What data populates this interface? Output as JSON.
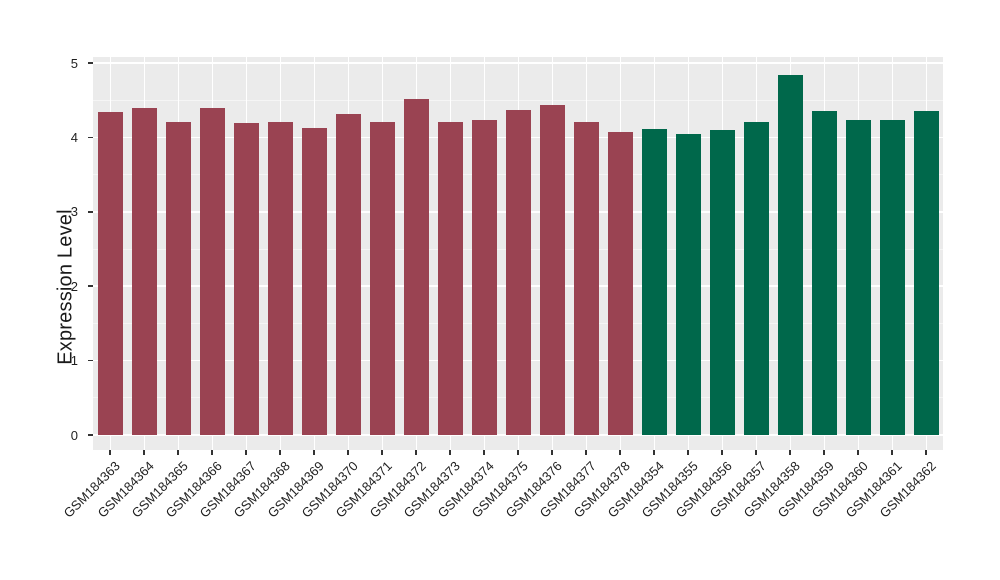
{
  "chart_data": {
    "type": "bar",
    "title": "",
    "xlabel": "",
    "ylabel": "Expression Level",
    "ylim": [
      0,
      5
    ],
    "yticks": [
      0,
      1,
      2,
      3,
      4,
      5
    ],
    "yticks_minor": [
      0.5,
      1.5,
      2.5,
      3.5,
      4.5
    ],
    "grid": "major and minor horizontal white lines, vertical white line at each category center, gray panel background",
    "legend_position": "none",
    "categories": [
      "GSM184363",
      "GSM184364",
      "GSM184365",
      "GSM184366",
      "GSM184367",
      "GSM184368",
      "GSM184369",
      "GSM184370",
      "GSM184371",
      "GSM184372",
      "GSM184373",
      "GSM184374",
      "GSM184375",
      "GSM184376",
      "GSM184377",
      "GSM184378",
      "GSM184354",
      "GSM184355",
      "GSM184356",
      "GSM184357",
      "GSM184358",
      "GSM184359",
      "GSM184360",
      "GSM184361",
      "GSM184362"
    ],
    "values": [
      4.34,
      4.39,
      4.21,
      4.39,
      4.19,
      4.21,
      4.13,
      4.31,
      4.21,
      4.52,
      4.21,
      4.23,
      4.37,
      4.44,
      4.21,
      4.07,
      4.11,
      4.05,
      4.1,
      4.21,
      4.84,
      4.36,
      4.24,
      4.24,
      4.36
    ],
    "bar_groups": [
      "red",
      "red",
      "red",
      "red",
      "red",
      "red",
      "red",
      "red",
      "red",
      "red",
      "red",
      "red",
      "red",
      "red",
      "red",
      "red",
      "green",
      "green",
      "green",
      "green",
      "green",
      "green",
      "green",
      "green",
      "green"
    ],
    "group_colors": {
      "red": "#9A4352",
      "green": "#00684B"
    }
  },
  "style": {
    "page_bg": "#FFFFFF",
    "panel_bg": "#EBEBEB",
    "grid_major": "#FFFFFF",
    "grid_minor": "#F5F5F5",
    "tick_color": "#333333",
    "text_color": "#1F1F1F"
  }
}
